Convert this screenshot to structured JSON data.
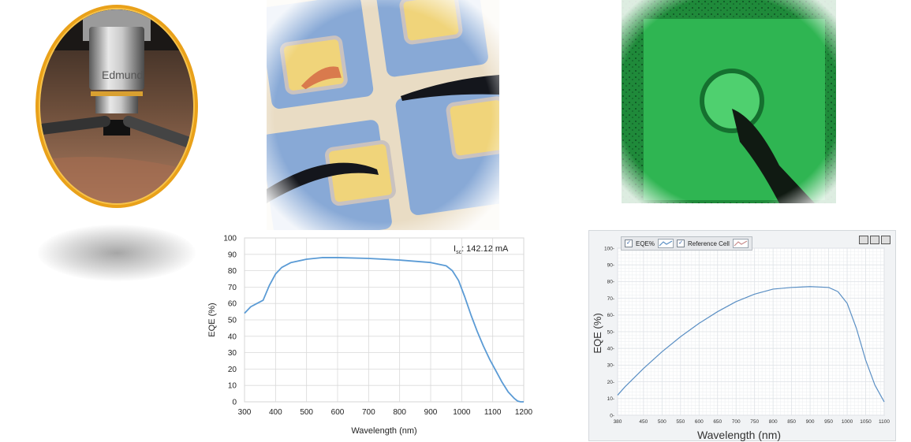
{
  "photos": {
    "microscope": {
      "lens_text": "Edmund"
    }
  },
  "chart_data": [
    {
      "type": "line",
      "title": "",
      "xlabel": "Wavelength (nm)",
      "ylabel": "EQE (%)",
      "xlim": [
        300,
        1200
      ],
      "ylim": [
        0,
        100
      ],
      "x_ticks": [
        300,
        400,
        500,
        600,
        700,
        800,
        900,
        1000,
        1100,
        1200
      ],
      "y_ticks": [
        0,
        10,
        20,
        30,
        40,
        50,
        60,
        70,
        80,
        90,
        100
      ],
      "grid": true,
      "annotation": {
        "label_main": "I",
        "label_sub": "sc",
        "value": ": 142.12 mA"
      },
      "series": [
        {
          "color": "#5b9bd5",
          "x": [
            300,
            320,
            340,
            360,
            380,
            400,
            420,
            450,
            500,
            550,
            600,
            700,
            800,
            900,
            950,
            970,
            990,
            1010,
            1030,
            1050,
            1070,
            1090,
            1110,
            1130,
            1150,
            1170,
            1180,
            1190,
            1200
          ],
          "y": [
            54,
            58,
            60,
            62,
            71,
            78,
            82,
            85,
            87,
            88,
            88,
            87.5,
            86.5,
            85,
            83,
            80,
            74,
            64,
            53,
            43,
            34,
            26,
            19,
            12,
            6,
            2,
            0.5,
            0,
            0
          ]
        }
      ]
    },
    {
      "type": "line",
      "title": "",
      "xlabel": "Wavelength (nm)",
      "ylabel": "EQE (%)",
      "xlim": [
        380,
        1100
      ],
      "ylim": [
        0,
        100
      ],
      "x_ticks": [
        380,
        450,
        500,
        550,
        600,
        650,
        700,
        750,
        800,
        850,
        900,
        950,
        1000,
        1050,
        1100
      ],
      "y_ticks": [
        0,
        10,
        20,
        30,
        40,
        50,
        60,
        70,
        80,
        90,
        100
      ],
      "grid": true,
      "legend": {
        "items": [
          "EQE%",
          "Reference Cell"
        ],
        "placement": "top-left"
      },
      "series": [
        {
          "color": "#5a8fc4",
          "x": [
            380,
            400,
            450,
            500,
            550,
            600,
            650,
            700,
            750,
            800,
            850,
            900,
            950,
            975,
            1000,
            1025,
            1050,
            1075,
            1100
          ],
          "y": [
            12,
            17,
            28,
            38,
            47,
            55,
            62,
            68,
            72.5,
            75.5,
            76.5,
            77,
            76.5,
            74,
            67,
            52,
            33,
            18,
            8
          ]
        }
      ]
    }
  ]
}
